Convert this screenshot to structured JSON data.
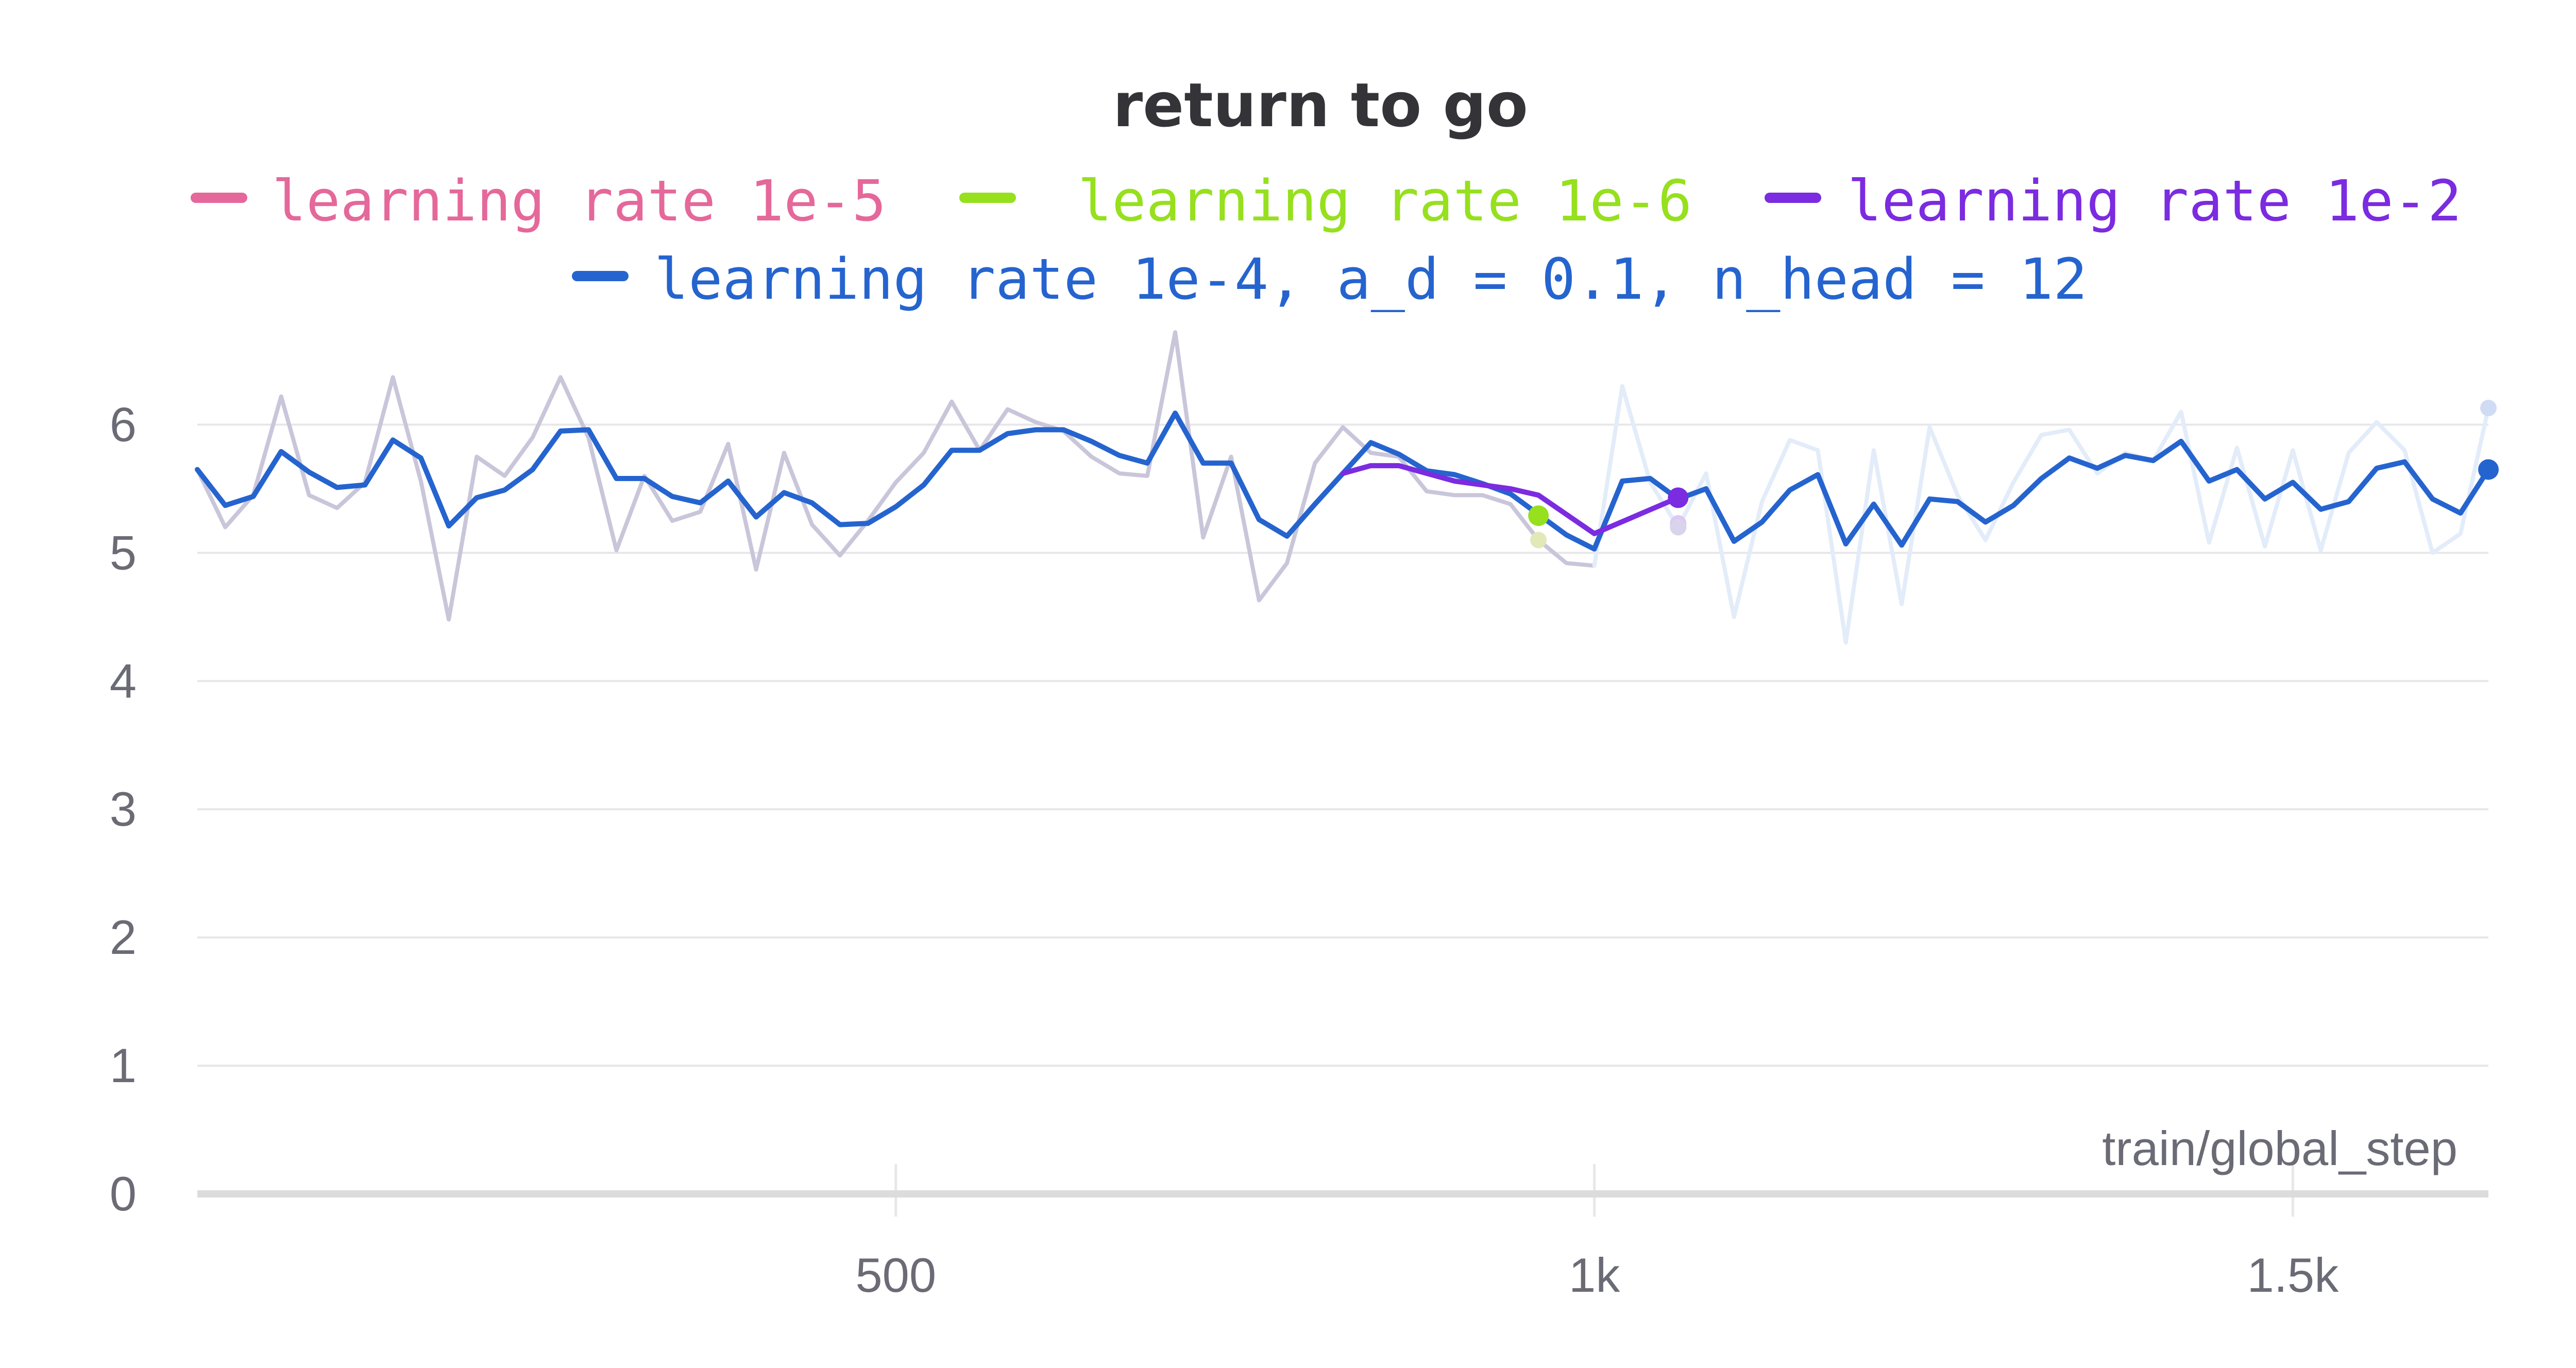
{
  "chart_data": {
    "type": "line",
    "title": "return to go",
    "xlabel": "train/global_step",
    "ylabel": "",
    "xlim": [
      0,
      1640
    ],
    "ylim": [
      0,
      6.5
    ],
    "x_ticks": [
      {
        "value": 500,
        "label": "500"
      },
      {
        "value": 1000,
        "label": "1k"
      },
      {
        "value": 1500,
        "label": "1.5k"
      }
    ],
    "y_ticks": [
      {
        "value": 0,
        "label": "0"
      },
      {
        "value": 1,
        "label": "1"
      },
      {
        "value": 2,
        "label": "2"
      },
      {
        "value": 3,
        "label": "3"
      },
      {
        "value": 4,
        "label": "4"
      },
      {
        "value": 5,
        "label": "5"
      },
      {
        "value": 6,
        "label": "6"
      }
    ],
    "grid": true,
    "legend_position": "top",
    "legend": [
      {
        "name": "learning rate 1e-5",
        "color": "#e5689a"
      },
      {
        "name": "learning rate 1e-6",
        "color": "#96e01e"
      },
      {
        "name": "learning rate 1e-2",
        "color": "#7b2be0"
      },
      {
        "name": "learning rate 1e-4, a_d = 0.1, n_head = 12",
        "color": "#2564cf"
      }
    ],
    "series": [
      {
        "name": "learning rate 1e-4, a_d = 0.1, n_head = 12",
        "color": "#2564cf",
        "x": [
          0,
          20,
          40,
          60,
          80,
          100,
          120,
          140,
          160,
          180,
          200,
          220,
          240,
          260,
          280,
          300,
          320,
          340,
          360,
          380,
          400,
          420,
          440,
          460,
          480,
          500,
          520,
          540,
          560,
          580,
          600,
          620,
          640,
          660,
          680,
          700,
          720,
          740,
          760,
          780,
          800,
          820,
          840,
          860,
          880,
          900,
          920,
          940,
          960,
          980,
          1000,
          1020,
          1040,
          1060,
          1080,
          1100,
          1120,
          1140,
          1160,
          1180,
          1200,
          1220,
          1240,
          1260,
          1280,
          1300,
          1320,
          1340,
          1360,
          1380,
          1400,
          1420,
          1440,
          1460,
          1480,
          1500,
          1520,
          1540,
          1560,
          1580,
          1600,
          1620,
          1640
        ],
        "values": [
          5.65,
          5.37,
          5.44,
          5.79,
          5.63,
          5.51,
          5.53,
          5.88,
          5.74,
          5.21,
          5.43,
          5.49,
          5.65,
          5.95,
          5.96,
          5.58,
          5.58,
          5.44,
          5.39,
          5.56,
          5.28,
          5.47,
          5.39,
          5.22,
          5.23,
          5.36,
          5.53,
          5.8,
          5.8,
          5.93,
          5.96,
          5.96,
          5.87,
          5.76,
          5.7,
          6.09,
          5.7,
          5.7,
          5.26,
          5.13,
          5.38,
          5.62,
          5.86,
          5.77,
          5.64,
          5.61,
          5.54,
          5.46,
          5.3,
          5.14,
          5.03,
          5.56,
          5.58,
          5.42,
          5.5,
          5.09,
          5.24,
          5.49,
          5.61,
          5.07,
          5.38,
          5.06,
          5.42,
          5.4,
          5.24,
          5.37,
          5.58,
          5.74,
          5.66,
          5.76,
          5.72,
          5.87,
          5.56,
          5.65,
          5.42,
          5.55,
          5.34,
          5.4,
          5.66,
          5.71,
          5.42,
          5.31,
          5.65
        ]
      },
      {
        "name": "learning rate 1e-2",
        "color": "#7b2be0",
        "x": [
          820,
          840,
          860,
          880,
          900,
          920,
          940,
          960,
          980,
          1000,
          1060
        ],
        "values": [
          5.62,
          5.68,
          5.68,
          5.62,
          5.56,
          5.53,
          5.5,
          5.45,
          5.3,
          5.15,
          5.43
        ]
      },
      {
        "name": "learning rate 1e-6",
        "color": "#96e01e",
        "x": [
          960
        ],
        "values": [
          5.29
        ]
      },
      {
        "name": "learning rate 1e-5",
        "color": "#e5689a",
        "x": [],
        "values": []
      }
    ],
    "raw_series": [
      {
        "name": "learning rate 1e-4, a_d = 0.1, n_head = 12",
        "color": "#c9c6da",
        "x": [
          0,
          20,
          40,
          60,
          80,
          100,
          120,
          140,
          160,
          180,
          200,
          220,
          240,
          260,
          280,
          300,
          320,
          340,
          360,
          380,
          400,
          420,
          440,
          460,
          480,
          500,
          520,
          540,
          560,
          580,
          600,
          620,
          640,
          660,
          680,
          700,
          720,
          740,
          760,
          780,
          800,
          820,
          840,
          860,
          880,
          900,
          920,
          940,
          960,
          980,
          1000
        ],
        "values": [
          5.65,
          5.2,
          5.45,
          6.22,
          5.45,
          5.35,
          5.55,
          6.37,
          5.56,
          4.48,
          5.75,
          5.6,
          5.9,
          6.37,
          5.9,
          5.02,
          5.6,
          5.25,
          5.32,
          5.85,
          4.87,
          5.78,
          5.22,
          4.98,
          5.25,
          5.55,
          5.78,
          6.18,
          5.8,
          6.12,
          6.02,
          5.95,
          5.75,
          5.62,
          5.6,
          6.72,
          5.12,
          5.75,
          4.63,
          4.92,
          5.7,
          5.98,
          5.78,
          5.75,
          5.48,
          5.45,
          5.45,
          5.38,
          5.1,
          4.92,
          4.9
        ]
      },
      {
        "name": "learning rate 1e-4, a_d = 0.1, n_head = 12",
        "color": "#e3ecf9",
        "x": [
          1000,
          1020,
          1040,
          1060,
          1080,
          1100,
          1120,
          1140,
          1160,
          1180,
          1200,
          1220,
          1240,
          1260,
          1280,
          1300,
          1320,
          1340,
          1360,
          1380,
          1400,
          1420,
          1440,
          1460,
          1480,
          1500,
          1520,
          1540,
          1560,
          1580,
          1600,
          1620,
          1640
        ],
        "values": [
          4.9,
          6.3,
          5.55,
          5.2,
          5.62,
          4.5,
          5.4,
          5.88,
          5.8,
          4.3,
          5.8,
          4.6,
          5.98,
          5.45,
          5.1,
          5.55,
          5.92,
          5.96,
          5.62,
          5.78,
          5.72,
          6.1,
          5.08,
          5.82,
          5.05,
          5.8,
          5.02,
          5.78,
          6.02,
          5.8,
          5.0,
          5.15,
          6.13
        ]
      }
    ],
    "faded_endpoints": [
      {
        "x": 960,
        "y": 5.1,
        "color": "#e2e8b8"
      },
      {
        "x": 1060,
        "y": 5.23,
        "color": "#dcc8f3"
      },
      {
        "x": 1060,
        "y": 5.2,
        "color": "#d9d3ec"
      }
    ],
    "end_markers": [
      {
        "x": 960,
        "y": 5.29,
        "color": "#96e01e"
      },
      {
        "x": 1060,
        "y": 5.43,
        "color": "#7b2be0"
      },
      {
        "x": 1640,
        "y": 5.65,
        "color": "#2564cf"
      }
    ]
  }
}
